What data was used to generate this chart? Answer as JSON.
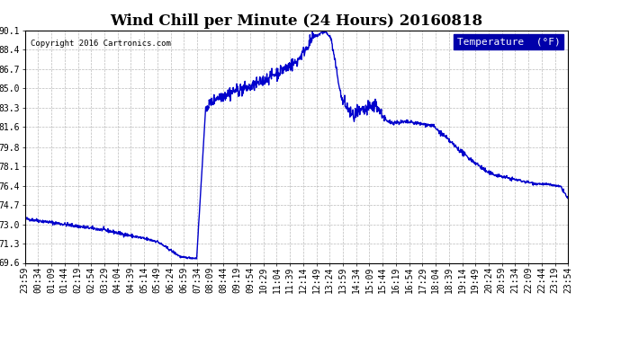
{
  "title": "Wind Chill per Minute (24 Hours) 20160818",
  "copyright": "Copyright 2016 Cartronics.com",
  "legend_label": "Temperature  (°F)",
  "line_color": "#0000CC",
  "background_color": "#ffffff",
  "grid_color": "#aaaaaa",
  "ylim": [
    69.6,
    90.1
  ],
  "yticks": [
    69.6,
    71.3,
    73.0,
    74.7,
    76.4,
    78.1,
    79.8,
    81.6,
    83.3,
    85.0,
    86.7,
    88.4,
    90.1
  ],
  "xtick_labels": [
    "23:59",
    "00:34",
    "01:09",
    "01:44",
    "02:19",
    "02:54",
    "03:29",
    "04:04",
    "04:39",
    "05:14",
    "05:49",
    "06:24",
    "06:59",
    "07:34",
    "08:09",
    "08:44",
    "09:19",
    "09:54",
    "10:29",
    "11:04",
    "11:39",
    "12:14",
    "12:49",
    "13:24",
    "13:59",
    "14:34",
    "15:09",
    "15:44",
    "16:19",
    "16:54",
    "17:29",
    "18:04",
    "18:39",
    "19:14",
    "19:49",
    "20:24",
    "20:59",
    "21:34",
    "22:09",
    "22:44",
    "23:19",
    "23:54"
  ],
  "title_fontsize": 12,
  "tick_fontsize": 7,
  "legend_fontsize": 8,
  "line_width": 1.0,
  "fig_width": 6.9,
  "fig_height": 3.75,
  "dpi": 100
}
